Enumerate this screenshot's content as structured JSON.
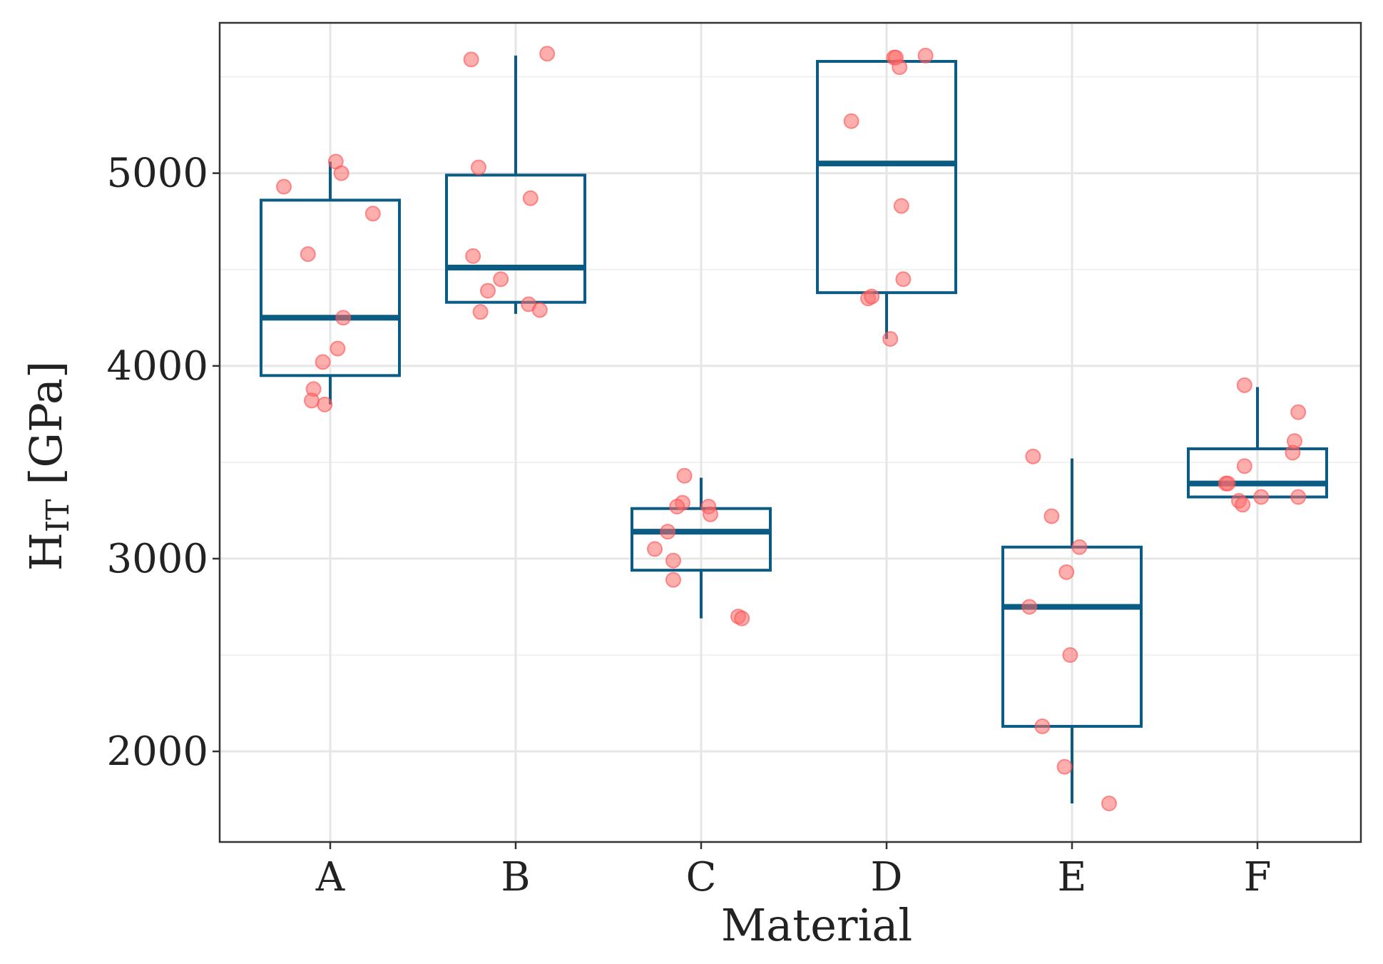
{
  "chart_data": {
    "type": "box",
    "title": "",
    "xlabel": "Material",
    "ylabel_main": "H",
    "ylabel_sub": "IT",
    "ylabel_unit": " [GPa]",
    "categories": [
      "A",
      "B",
      "C",
      "D",
      "E",
      "F"
    ],
    "ylim": [
      1530,
      5780
    ],
    "yticks": [
      2000,
      3000,
      4000,
      5000
    ],
    "ytick_labels": [
      "2000",
      "3000",
      "4000",
      "5000"
    ],
    "yminor": [
      2500,
      3500,
      4500,
      5500
    ],
    "grid": true,
    "colors": {
      "box": "#0b5c85",
      "points": "#ff6b6b",
      "grid": "#e6e6e6"
    },
    "boxes": [
      {
        "category": "A",
        "q1": 3950,
        "median": 4250,
        "q3": 4860,
        "whisker_low": 3800,
        "whisker_high": 5060
      },
      {
        "category": "B",
        "q1": 4330,
        "median": 4510,
        "q3": 4990,
        "whisker_low": 4270,
        "whisker_high": 5610
      },
      {
        "category": "C",
        "q1": 2940,
        "median": 3140,
        "q3": 3260,
        "whisker_low": 2690,
        "whisker_high": 3420
      },
      {
        "category": "D",
        "q1": 4380,
        "median": 5050,
        "q3": 5580,
        "whisker_low": 4140,
        "whisker_high": 5580
      },
      {
        "category": "E",
        "q1": 2130,
        "median": 2750,
        "q3": 3060,
        "whisker_low": 1730,
        "whisker_high": 3520
      },
      {
        "category": "F",
        "q1": 3320,
        "median": 3390,
        "q3": 3570,
        "whisker_low": 3320,
        "whisker_high": 3890
      }
    ],
    "points": [
      {
        "category": "A",
        "jitter": -0.25,
        "value": 4930
      },
      {
        "category": "A",
        "jitter": 0.03,
        "value": 5060
      },
      {
        "category": "A",
        "jitter": 0.06,
        "value": 5000
      },
      {
        "category": "A",
        "jitter": 0.23,
        "value": 4790
      },
      {
        "category": "A",
        "jitter": -0.12,
        "value": 4580
      },
      {
        "category": "A",
        "jitter": 0.07,
        "value": 4250
      },
      {
        "category": "A",
        "jitter": 0.04,
        "value": 4090
      },
      {
        "category": "A",
        "jitter": -0.04,
        "value": 4020
      },
      {
        "category": "A",
        "jitter": -0.09,
        "value": 3880
      },
      {
        "category": "A",
        "jitter": -0.1,
        "value": 3820
      },
      {
        "category": "A",
        "jitter": -0.03,
        "value": 3800
      },
      {
        "category": "B",
        "jitter": -0.24,
        "value": 5590
      },
      {
        "category": "B",
        "jitter": 0.17,
        "value": 5620
      },
      {
        "category": "B",
        "jitter": -0.2,
        "value": 5030
      },
      {
        "category": "B",
        "jitter": 0.08,
        "value": 4870
      },
      {
        "category": "B",
        "jitter": -0.23,
        "value": 4570
      },
      {
        "category": "B",
        "jitter": -0.08,
        "value": 4450
      },
      {
        "category": "B",
        "jitter": -0.15,
        "value": 4390
      },
      {
        "category": "B",
        "jitter": 0.07,
        "value": 4320
      },
      {
        "category": "B",
        "jitter": 0.13,
        "value": 4290
      },
      {
        "category": "B",
        "jitter": -0.19,
        "value": 4280
      },
      {
        "category": "C",
        "jitter": -0.09,
        "value": 3430
      },
      {
        "category": "C",
        "jitter": -0.1,
        "value": 3290
      },
      {
        "category": "C",
        "jitter": -0.13,
        "value": 3270
      },
      {
        "category": "C",
        "jitter": 0.04,
        "value": 3270
      },
      {
        "category": "C",
        "jitter": 0.05,
        "value": 3230
      },
      {
        "category": "C",
        "jitter": -0.18,
        "value": 3140
      },
      {
        "category": "C",
        "jitter": -0.25,
        "value": 3050
      },
      {
        "category": "C",
        "jitter": -0.15,
        "value": 2990
      },
      {
        "category": "C",
        "jitter": -0.15,
        "value": 2890
      },
      {
        "category": "C",
        "jitter": 0.2,
        "value": 2700
      },
      {
        "category": "C",
        "jitter": 0.22,
        "value": 2690
      },
      {
        "category": "D",
        "jitter": 0.04,
        "value": 5600
      },
      {
        "category": "D",
        "jitter": 0.05,
        "value": 5600
      },
      {
        "category": "D",
        "jitter": 0.21,
        "value": 5610
      },
      {
        "category": "D",
        "jitter": 0.07,
        "value": 5550
      },
      {
        "category": "D",
        "jitter": -0.19,
        "value": 5270
      },
      {
        "category": "D",
        "jitter": 0.08,
        "value": 4830
      },
      {
        "category": "D",
        "jitter": 0.09,
        "value": 4450
      },
      {
        "category": "D",
        "jitter": -0.1,
        "value": 4350
      },
      {
        "category": "D",
        "jitter": -0.08,
        "value": 4360
      },
      {
        "category": "D",
        "jitter": 0.02,
        "value": 4140
      },
      {
        "category": "E",
        "jitter": -0.21,
        "value": 3530
      },
      {
        "category": "E",
        "jitter": -0.11,
        "value": 3220
      },
      {
        "category": "E",
        "jitter": 0.04,
        "value": 3060
      },
      {
        "category": "E",
        "jitter": -0.03,
        "value": 2930
      },
      {
        "category": "E",
        "jitter": -0.23,
        "value": 2750
      },
      {
        "category": "E",
        "jitter": -0.01,
        "value": 2500
      },
      {
        "category": "E",
        "jitter": -0.16,
        "value": 2130
      },
      {
        "category": "E",
        "jitter": -0.04,
        "value": 1920
      },
      {
        "category": "E",
        "jitter": 0.2,
        "value": 1730
      },
      {
        "category": "F",
        "jitter": -0.07,
        "value": 3900
      },
      {
        "category": "F",
        "jitter": 0.22,
        "value": 3760
      },
      {
        "category": "F",
        "jitter": 0.2,
        "value": 3610
      },
      {
        "category": "F",
        "jitter": 0.19,
        "value": 3550
      },
      {
        "category": "F",
        "jitter": -0.07,
        "value": 3480
      },
      {
        "category": "F",
        "jitter": -0.17,
        "value": 3390
      },
      {
        "category": "F",
        "jitter": -0.16,
        "value": 3390
      },
      {
        "category": "F",
        "jitter": -0.1,
        "value": 3300
      },
      {
        "category": "F",
        "jitter": -0.08,
        "value": 3280
      },
      {
        "category": "F",
        "jitter": 0.02,
        "value": 3320
      },
      {
        "category": "F",
        "jitter": 0.22,
        "value": 3320
      }
    ]
  }
}
